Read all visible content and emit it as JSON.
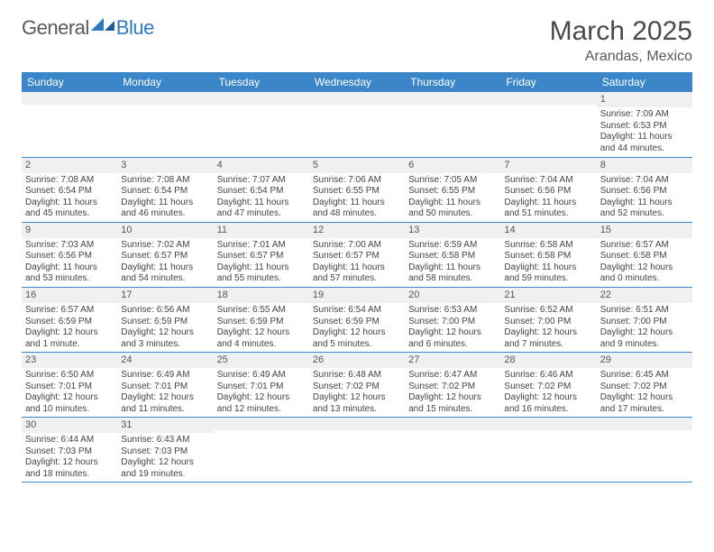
{
  "logo": {
    "general": "General",
    "blue": "Blue"
  },
  "title": "March 2025",
  "subtitle": "Arandas, Mexico",
  "colors": {
    "header_bg": "#3a86c8",
    "header_text": "#ffffff",
    "daynum_bg": "#eef0f2",
    "border": "#3a86c8",
    "logo_gray": "#5a5a5a",
    "logo_blue": "#2f79bf"
  },
  "day_headers": [
    "Sunday",
    "Monday",
    "Tuesday",
    "Wednesday",
    "Thursday",
    "Friday",
    "Saturday"
  ],
  "weeks": [
    [
      {
        "day": "",
        "sunrise": "",
        "sunset": "",
        "daylight": ""
      },
      {
        "day": "",
        "sunrise": "",
        "sunset": "",
        "daylight": ""
      },
      {
        "day": "",
        "sunrise": "",
        "sunset": "",
        "daylight": ""
      },
      {
        "day": "",
        "sunrise": "",
        "sunset": "",
        "daylight": ""
      },
      {
        "day": "",
        "sunrise": "",
        "sunset": "",
        "daylight": ""
      },
      {
        "day": "",
        "sunrise": "",
        "sunset": "",
        "daylight": ""
      },
      {
        "day": "1",
        "sunrise": "Sunrise: 7:09 AM",
        "sunset": "Sunset: 6:53 PM",
        "daylight": "Daylight: 11 hours and 44 minutes."
      }
    ],
    [
      {
        "day": "2",
        "sunrise": "Sunrise: 7:08 AM",
        "sunset": "Sunset: 6:54 PM",
        "daylight": "Daylight: 11 hours and 45 minutes."
      },
      {
        "day": "3",
        "sunrise": "Sunrise: 7:08 AM",
        "sunset": "Sunset: 6:54 PM",
        "daylight": "Daylight: 11 hours and 46 minutes."
      },
      {
        "day": "4",
        "sunrise": "Sunrise: 7:07 AM",
        "sunset": "Sunset: 6:54 PM",
        "daylight": "Daylight: 11 hours and 47 minutes."
      },
      {
        "day": "5",
        "sunrise": "Sunrise: 7:06 AM",
        "sunset": "Sunset: 6:55 PM",
        "daylight": "Daylight: 11 hours and 48 minutes."
      },
      {
        "day": "6",
        "sunrise": "Sunrise: 7:05 AM",
        "sunset": "Sunset: 6:55 PM",
        "daylight": "Daylight: 11 hours and 50 minutes."
      },
      {
        "day": "7",
        "sunrise": "Sunrise: 7:04 AM",
        "sunset": "Sunset: 6:56 PM",
        "daylight": "Daylight: 11 hours and 51 minutes."
      },
      {
        "day": "8",
        "sunrise": "Sunrise: 7:04 AM",
        "sunset": "Sunset: 6:56 PM",
        "daylight": "Daylight: 11 hours and 52 minutes."
      }
    ],
    [
      {
        "day": "9",
        "sunrise": "Sunrise: 7:03 AM",
        "sunset": "Sunset: 6:56 PM",
        "daylight": "Daylight: 11 hours and 53 minutes."
      },
      {
        "day": "10",
        "sunrise": "Sunrise: 7:02 AM",
        "sunset": "Sunset: 6:57 PM",
        "daylight": "Daylight: 11 hours and 54 minutes."
      },
      {
        "day": "11",
        "sunrise": "Sunrise: 7:01 AM",
        "sunset": "Sunset: 6:57 PM",
        "daylight": "Daylight: 11 hours and 55 minutes."
      },
      {
        "day": "12",
        "sunrise": "Sunrise: 7:00 AM",
        "sunset": "Sunset: 6:57 PM",
        "daylight": "Daylight: 11 hours and 57 minutes."
      },
      {
        "day": "13",
        "sunrise": "Sunrise: 6:59 AM",
        "sunset": "Sunset: 6:58 PM",
        "daylight": "Daylight: 11 hours and 58 minutes."
      },
      {
        "day": "14",
        "sunrise": "Sunrise: 6:58 AM",
        "sunset": "Sunset: 6:58 PM",
        "daylight": "Daylight: 11 hours and 59 minutes."
      },
      {
        "day": "15",
        "sunrise": "Sunrise: 6:57 AM",
        "sunset": "Sunset: 6:58 PM",
        "daylight": "Daylight: 12 hours and 0 minutes."
      }
    ],
    [
      {
        "day": "16",
        "sunrise": "Sunrise: 6:57 AM",
        "sunset": "Sunset: 6:59 PM",
        "daylight": "Daylight: 12 hours and 1 minute."
      },
      {
        "day": "17",
        "sunrise": "Sunrise: 6:56 AM",
        "sunset": "Sunset: 6:59 PM",
        "daylight": "Daylight: 12 hours and 3 minutes."
      },
      {
        "day": "18",
        "sunrise": "Sunrise: 6:55 AM",
        "sunset": "Sunset: 6:59 PM",
        "daylight": "Daylight: 12 hours and 4 minutes."
      },
      {
        "day": "19",
        "sunrise": "Sunrise: 6:54 AM",
        "sunset": "Sunset: 6:59 PM",
        "daylight": "Daylight: 12 hours and 5 minutes."
      },
      {
        "day": "20",
        "sunrise": "Sunrise: 6:53 AM",
        "sunset": "Sunset: 7:00 PM",
        "daylight": "Daylight: 12 hours and 6 minutes."
      },
      {
        "day": "21",
        "sunrise": "Sunrise: 6:52 AM",
        "sunset": "Sunset: 7:00 PM",
        "daylight": "Daylight: 12 hours and 7 minutes."
      },
      {
        "day": "22",
        "sunrise": "Sunrise: 6:51 AM",
        "sunset": "Sunset: 7:00 PM",
        "daylight": "Daylight: 12 hours and 9 minutes."
      }
    ],
    [
      {
        "day": "23",
        "sunrise": "Sunrise: 6:50 AM",
        "sunset": "Sunset: 7:01 PM",
        "daylight": "Daylight: 12 hours and 10 minutes."
      },
      {
        "day": "24",
        "sunrise": "Sunrise: 6:49 AM",
        "sunset": "Sunset: 7:01 PM",
        "daylight": "Daylight: 12 hours and 11 minutes."
      },
      {
        "day": "25",
        "sunrise": "Sunrise: 6:49 AM",
        "sunset": "Sunset: 7:01 PM",
        "daylight": "Daylight: 12 hours and 12 minutes."
      },
      {
        "day": "26",
        "sunrise": "Sunrise: 6:48 AM",
        "sunset": "Sunset: 7:02 PM",
        "daylight": "Daylight: 12 hours and 13 minutes."
      },
      {
        "day": "27",
        "sunrise": "Sunrise: 6:47 AM",
        "sunset": "Sunset: 7:02 PM",
        "daylight": "Daylight: 12 hours and 15 minutes."
      },
      {
        "day": "28",
        "sunrise": "Sunrise: 6:46 AM",
        "sunset": "Sunset: 7:02 PM",
        "daylight": "Daylight: 12 hours and 16 minutes."
      },
      {
        "day": "29",
        "sunrise": "Sunrise: 6:45 AM",
        "sunset": "Sunset: 7:02 PM",
        "daylight": "Daylight: 12 hours and 17 minutes."
      }
    ],
    [
      {
        "day": "30",
        "sunrise": "Sunrise: 6:44 AM",
        "sunset": "Sunset: 7:03 PM",
        "daylight": "Daylight: 12 hours and 18 minutes."
      },
      {
        "day": "31",
        "sunrise": "Sunrise: 6:43 AM",
        "sunset": "Sunset: 7:03 PM",
        "daylight": "Daylight: 12 hours and 19 minutes."
      },
      {
        "day": "",
        "sunrise": "",
        "sunset": "",
        "daylight": ""
      },
      {
        "day": "",
        "sunrise": "",
        "sunset": "",
        "daylight": ""
      },
      {
        "day": "",
        "sunrise": "",
        "sunset": "",
        "daylight": ""
      },
      {
        "day": "",
        "sunrise": "",
        "sunset": "",
        "daylight": ""
      },
      {
        "day": "",
        "sunrise": "",
        "sunset": "",
        "daylight": ""
      }
    ]
  ]
}
